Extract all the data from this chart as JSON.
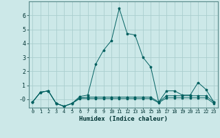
{
  "xlabel": "Humidex (Indice chaleur)",
  "xlim": [
    -0.5,
    23.5
  ],
  "ylim": [
    -0.6,
    7.0
  ],
  "yticks": [
    0,
    1,
    2,
    3,
    4,
    5,
    6
  ],
  "ytick_labels": [
    "-0",
    "1",
    "2",
    "3",
    "4",
    "5",
    "6"
  ],
  "xtick_labels": [
    "0",
    "1",
    "2",
    "3",
    "4",
    "5",
    "6",
    "7",
    "8",
    "9",
    "10",
    "11",
    "12",
    "13",
    "14",
    "15",
    "16",
    "17",
    "18",
    "19",
    "20",
    "21",
    "22",
    "23"
  ],
  "bg_color": "#cce8e8",
  "grid_color": "#aacece",
  "line_color": "#006060",
  "x": [
    0,
    1,
    2,
    3,
    4,
    5,
    6,
    7,
    8,
    9,
    10,
    11,
    12,
    13,
    14,
    15,
    16,
    17,
    18,
    19,
    20,
    21,
    22,
    23
  ],
  "y_main": [
    -0.2,
    0.5,
    0.6,
    -0.3,
    -0.5,
    -0.3,
    0.2,
    0.3,
    2.5,
    3.5,
    4.2,
    6.5,
    4.7,
    4.6,
    3.0,
    2.3,
    -0.2,
    0.6,
    0.6,
    0.3,
    0.3,
    1.2,
    0.7,
    -0.2
  ],
  "y_line2": [
    -0.2,
    0.5,
    0.6,
    -0.3,
    -0.5,
    -0.3,
    0.1,
    0.15,
    0.15,
    0.15,
    0.15,
    0.15,
    0.15,
    0.15,
    0.15,
    0.15,
    -0.2,
    0.25,
    0.25,
    0.25,
    0.25,
    0.25,
    0.25,
    -0.2
  ],
  "y_line3": [
    -0.2,
    0.5,
    0.6,
    -0.3,
    -0.5,
    -0.3,
    0.05,
    0.05,
    0.05,
    0.05,
    0.05,
    0.05,
    0.05,
    0.05,
    0.05,
    0.05,
    -0.25,
    0.1,
    0.1,
    0.1,
    0.1,
    0.1,
    0.1,
    -0.3
  ]
}
